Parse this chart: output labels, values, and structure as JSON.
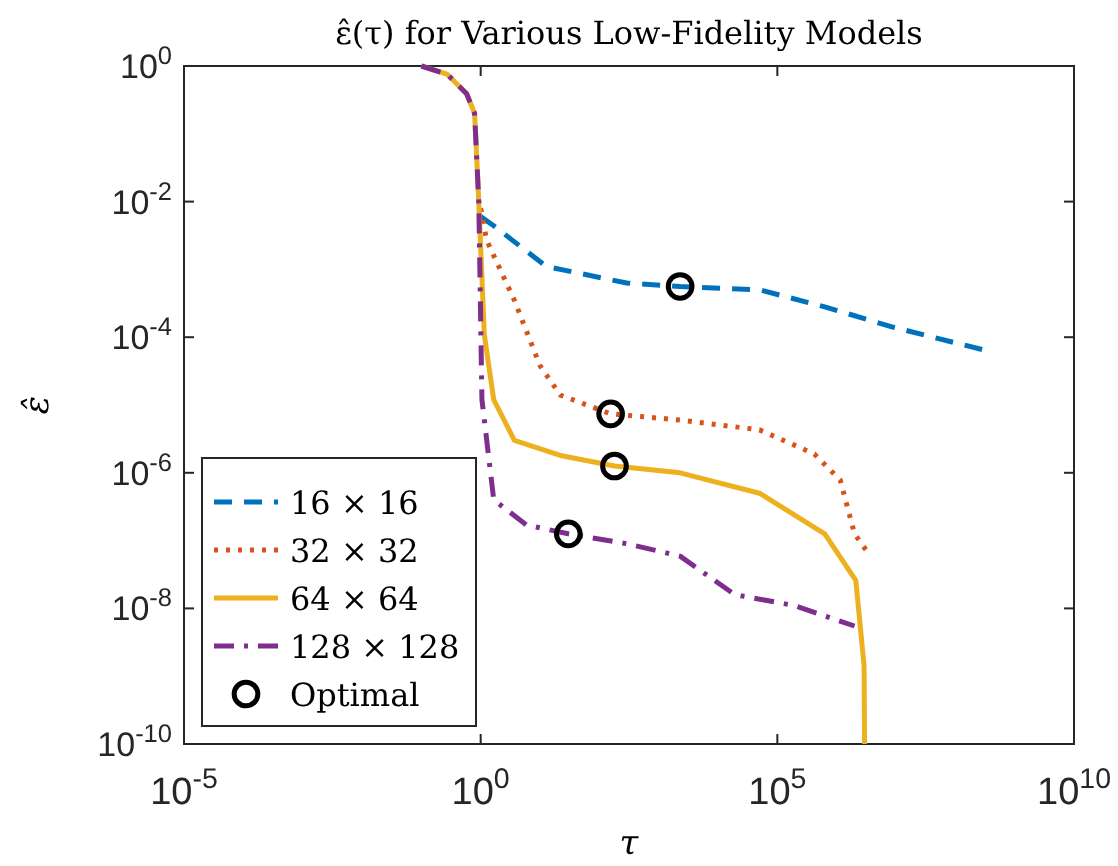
{
  "chart_data": {
    "type": "line",
    "title": "ε̂(τ) for Various Low-Fidelity Models",
    "xlabel": "τ",
    "ylabel": "ε̂",
    "log": "xy",
    "grid": false,
    "legend": "bottom left",
    "xlim": [
      1e-05,
      10000000000.0
    ],
    "ylim": [
      1e-10,
      1
    ],
    "xticks": [
      {
        "value": 1e-05,
        "label": "10$^{-5}$"
      },
      {
        "value": 1,
        "label": "10$^{0}$"
      },
      {
        "value": 100000.0,
        "label": "10$^{5}$"
      },
      {
        "value": 10000000000.0,
        "label": "10$^{10}$"
      }
    ],
    "yticks": [
      {
        "value": 1e-10,
        "label": "10$^{-10}$"
      },
      {
        "value": 1e-08,
        "label": "10$^{-8}$"
      },
      {
        "value": 1e-06,
        "label": "10$^{-6}$"
      },
      {
        "value": 0.0001,
        "label": "10$^{-4}$"
      },
      {
        "value": 0.01,
        "label": "10$^{-2}$"
      },
      {
        "value": 1,
        "label": "10$^{0}$"
      }
    ],
    "series": [
      {
        "name": "16 × 16",
        "color": "#0072bd",
        "line_style": "dashed",
        "marker": "none",
        "x": [
          1.0,
          1.66,
          12.9,
          290,
          2300,
          50000,
          630000,
          9100000,
          300000000
        ],
        "values": [
          0.006,
          0.0044,
          0.0011,
          0.00063,
          0.00056,
          0.0005,
          0.00028,
          0.00014,
          6.5e-05
        ]
      },
      {
        "name": "32 × 32",
        "color": "#d95319",
        "line_style": "dotted",
        "marker": "none",
        "x": [
          1.0,
          1.26,
          3.7,
          10,
          22,
          155,
          2300,
          50000,
          420000,
          1150000,
          2000000,
          3700000
        ],
        "values": [
          0.008,
          0.0027,
          0.00035,
          3.8e-05,
          1.4e-05,
          7.4e-06,
          6e-06,
          4.3e-06,
          1.9e-06,
          7.8e-07,
          1.26e-07,
          5.9e-08
        ]
      },
      {
        "name": "64 × 64",
        "color": "#edb120",
        "line_style": "solid",
        "marker": "none",
        "x": [
          0.1,
          0.27,
          0.58,
          0.79,
          0.93,
          1.15,
          1.66,
          3.7,
          22,
          180,
          2300,
          50000,
          630000,
          2100000,
          2900000,
          2950000
        ],
        "values": [
          1,
          0.76,
          0.39,
          0.2,
          0.01,
          0.00011,
          1.2e-05,
          3e-06,
          1.8e-06,
          1.26e-06,
          1e-06,
          5e-07,
          1.26e-07,
          2.6e-08,
          1.4e-09,
          1e-10
        ]
      },
      {
        "name": "128 × 128",
        "color": "#7e2f8e",
        "line_style": "dashdot",
        "marker": "none",
        "x": [
          0.1,
          0.27,
          0.58,
          0.79,
          0.93,
          1.05,
          1.66,
          5.9,
          30,
          290,
          2300,
          19000,
          195000,
          2000000
        ],
        "values": [
          1,
          0.76,
          0.39,
          0.2,
          0.01,
          1.2e-05,
          4e-07,
          1.7e-07,
          1.26e-07,
          9e-08,
          5.9e-08,
          1.6e-08,
          1.1e-08,
          5.5e-09
        ]
      },
      {
        "name": "Optimal",
        "type": "scatter",
        "color": "#000000",
        "marker": "circle",
        "x": [
          2300,
          155,
          180,
          30
        ],
        "values": [
          0.00056,
          7.4e-06,
          1.26e-06,
          1.26e-07
        ]
      }
    ]
  }
}
